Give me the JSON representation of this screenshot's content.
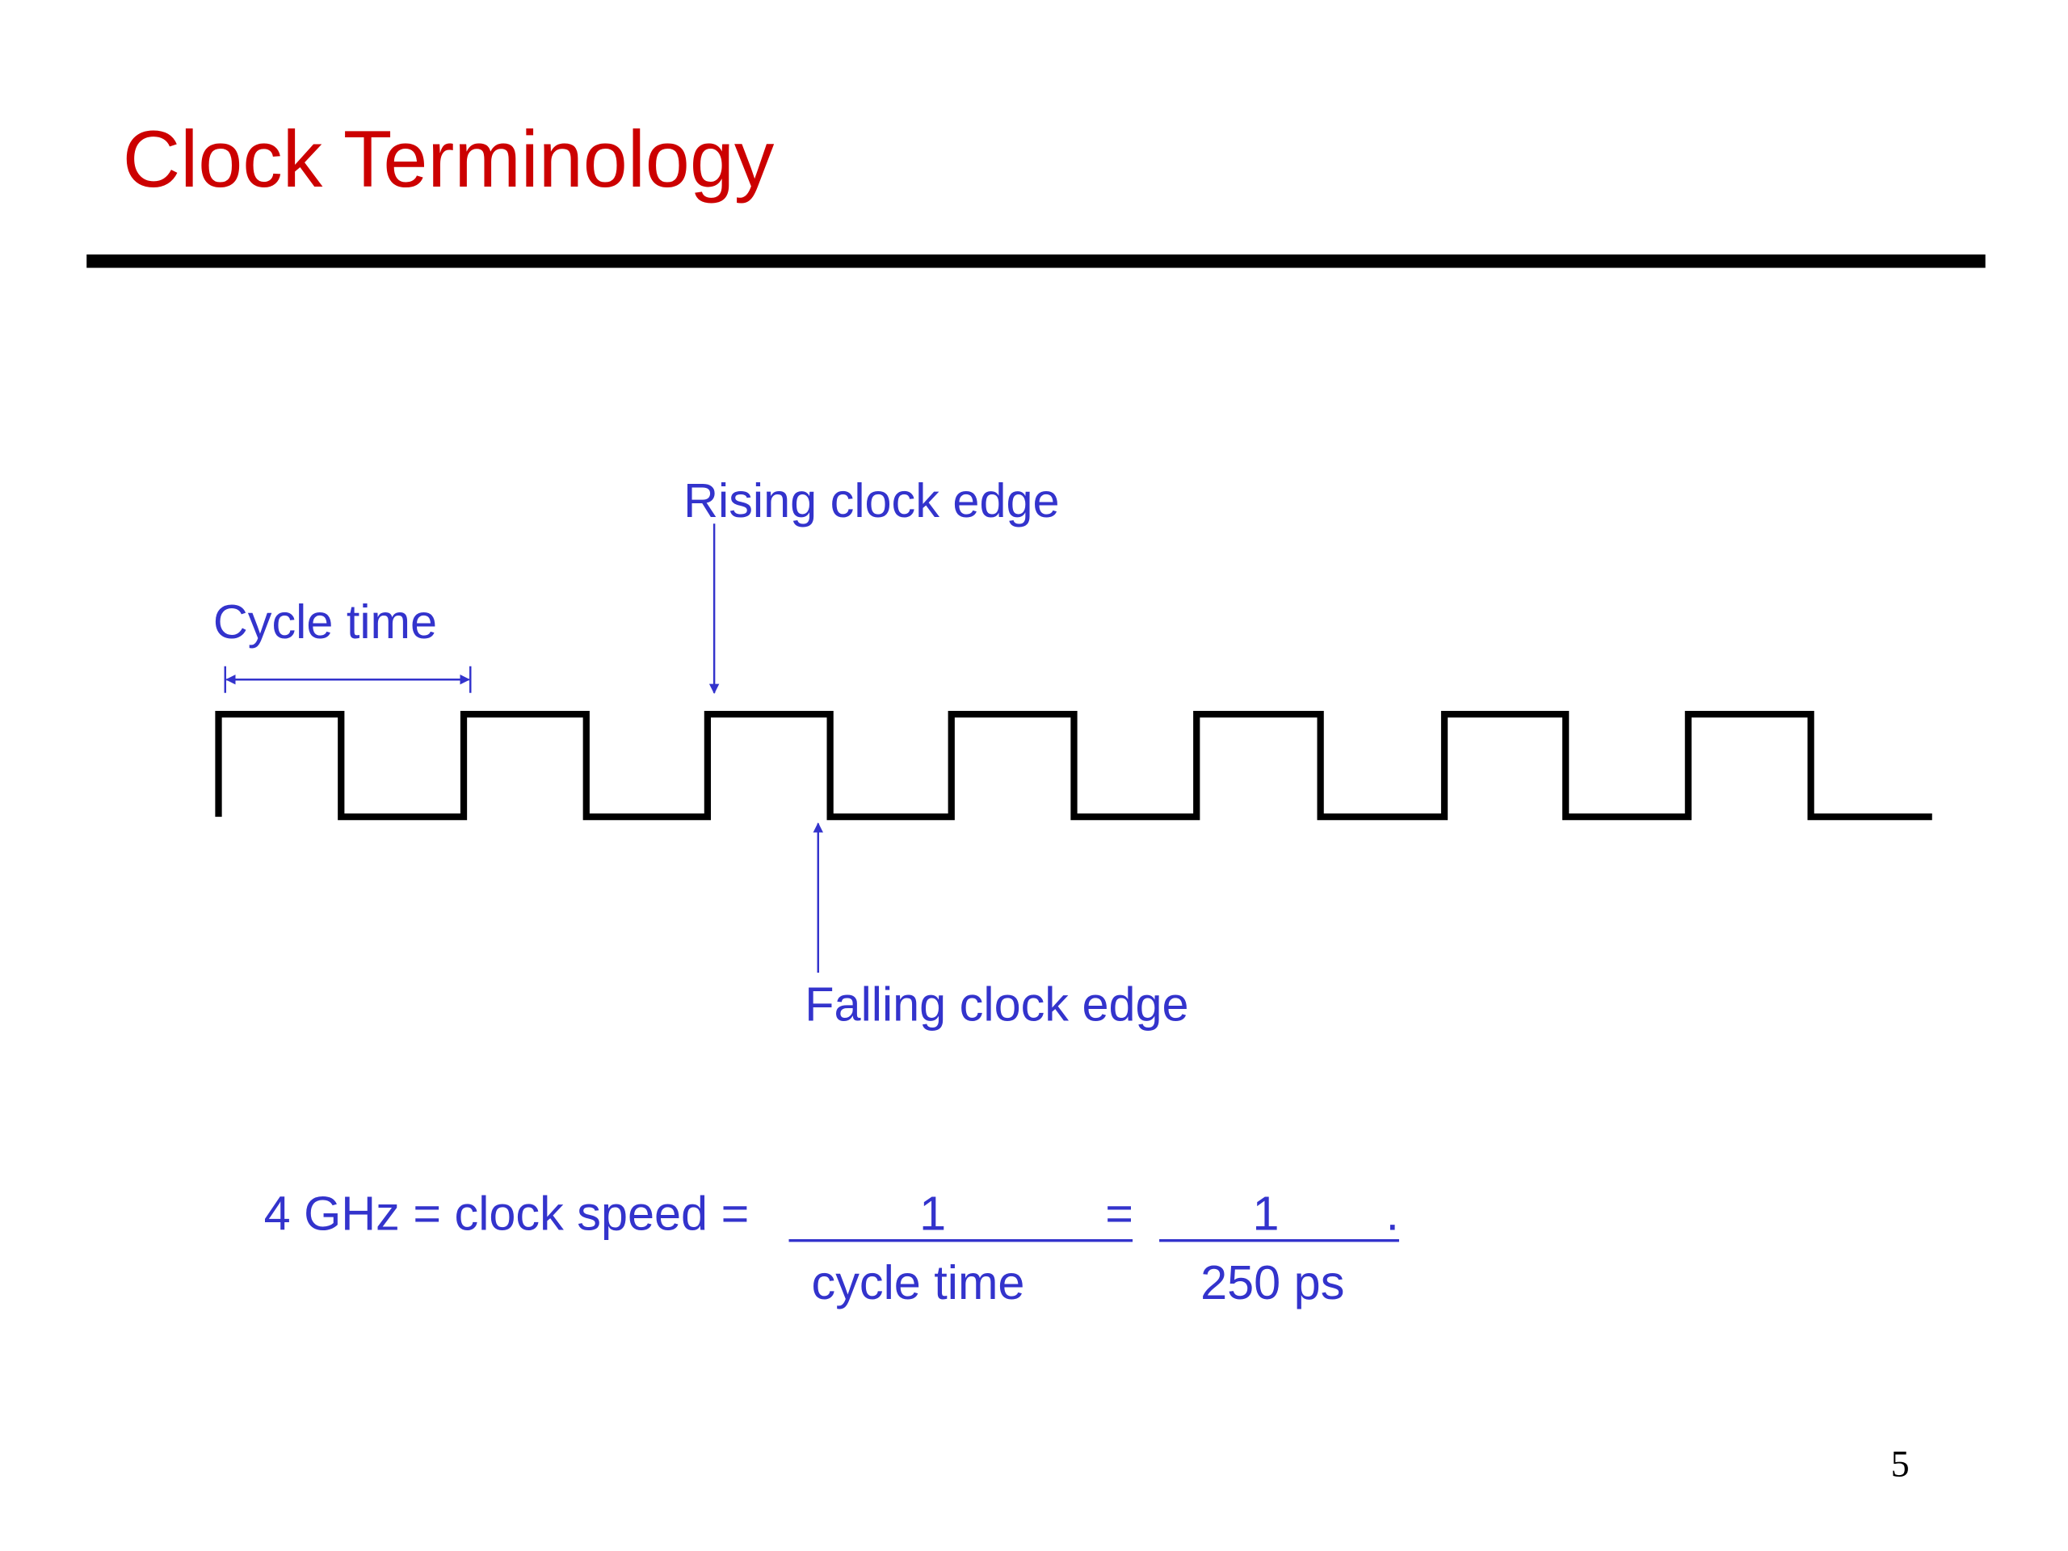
{
  "header": {
    "title": "Clock Terminology"
  },
  "diagram": {
    "rising_label": "Rising clock edge",
    "cycle_label": "Cycle time",
    "falling_label": "Falling clock edge"
  },
  "formula": {
    "lhs": "4 GHz = clock speed =",
    "frac1_num": "1",
    "eq": "=",
    "frac2_num": "1",
    "period": ".",
    "frac1_den": "cycle time",
    "frac2_den": "250 ps"
  },
  "footer": {
    "page_number": "5"
  }
}
